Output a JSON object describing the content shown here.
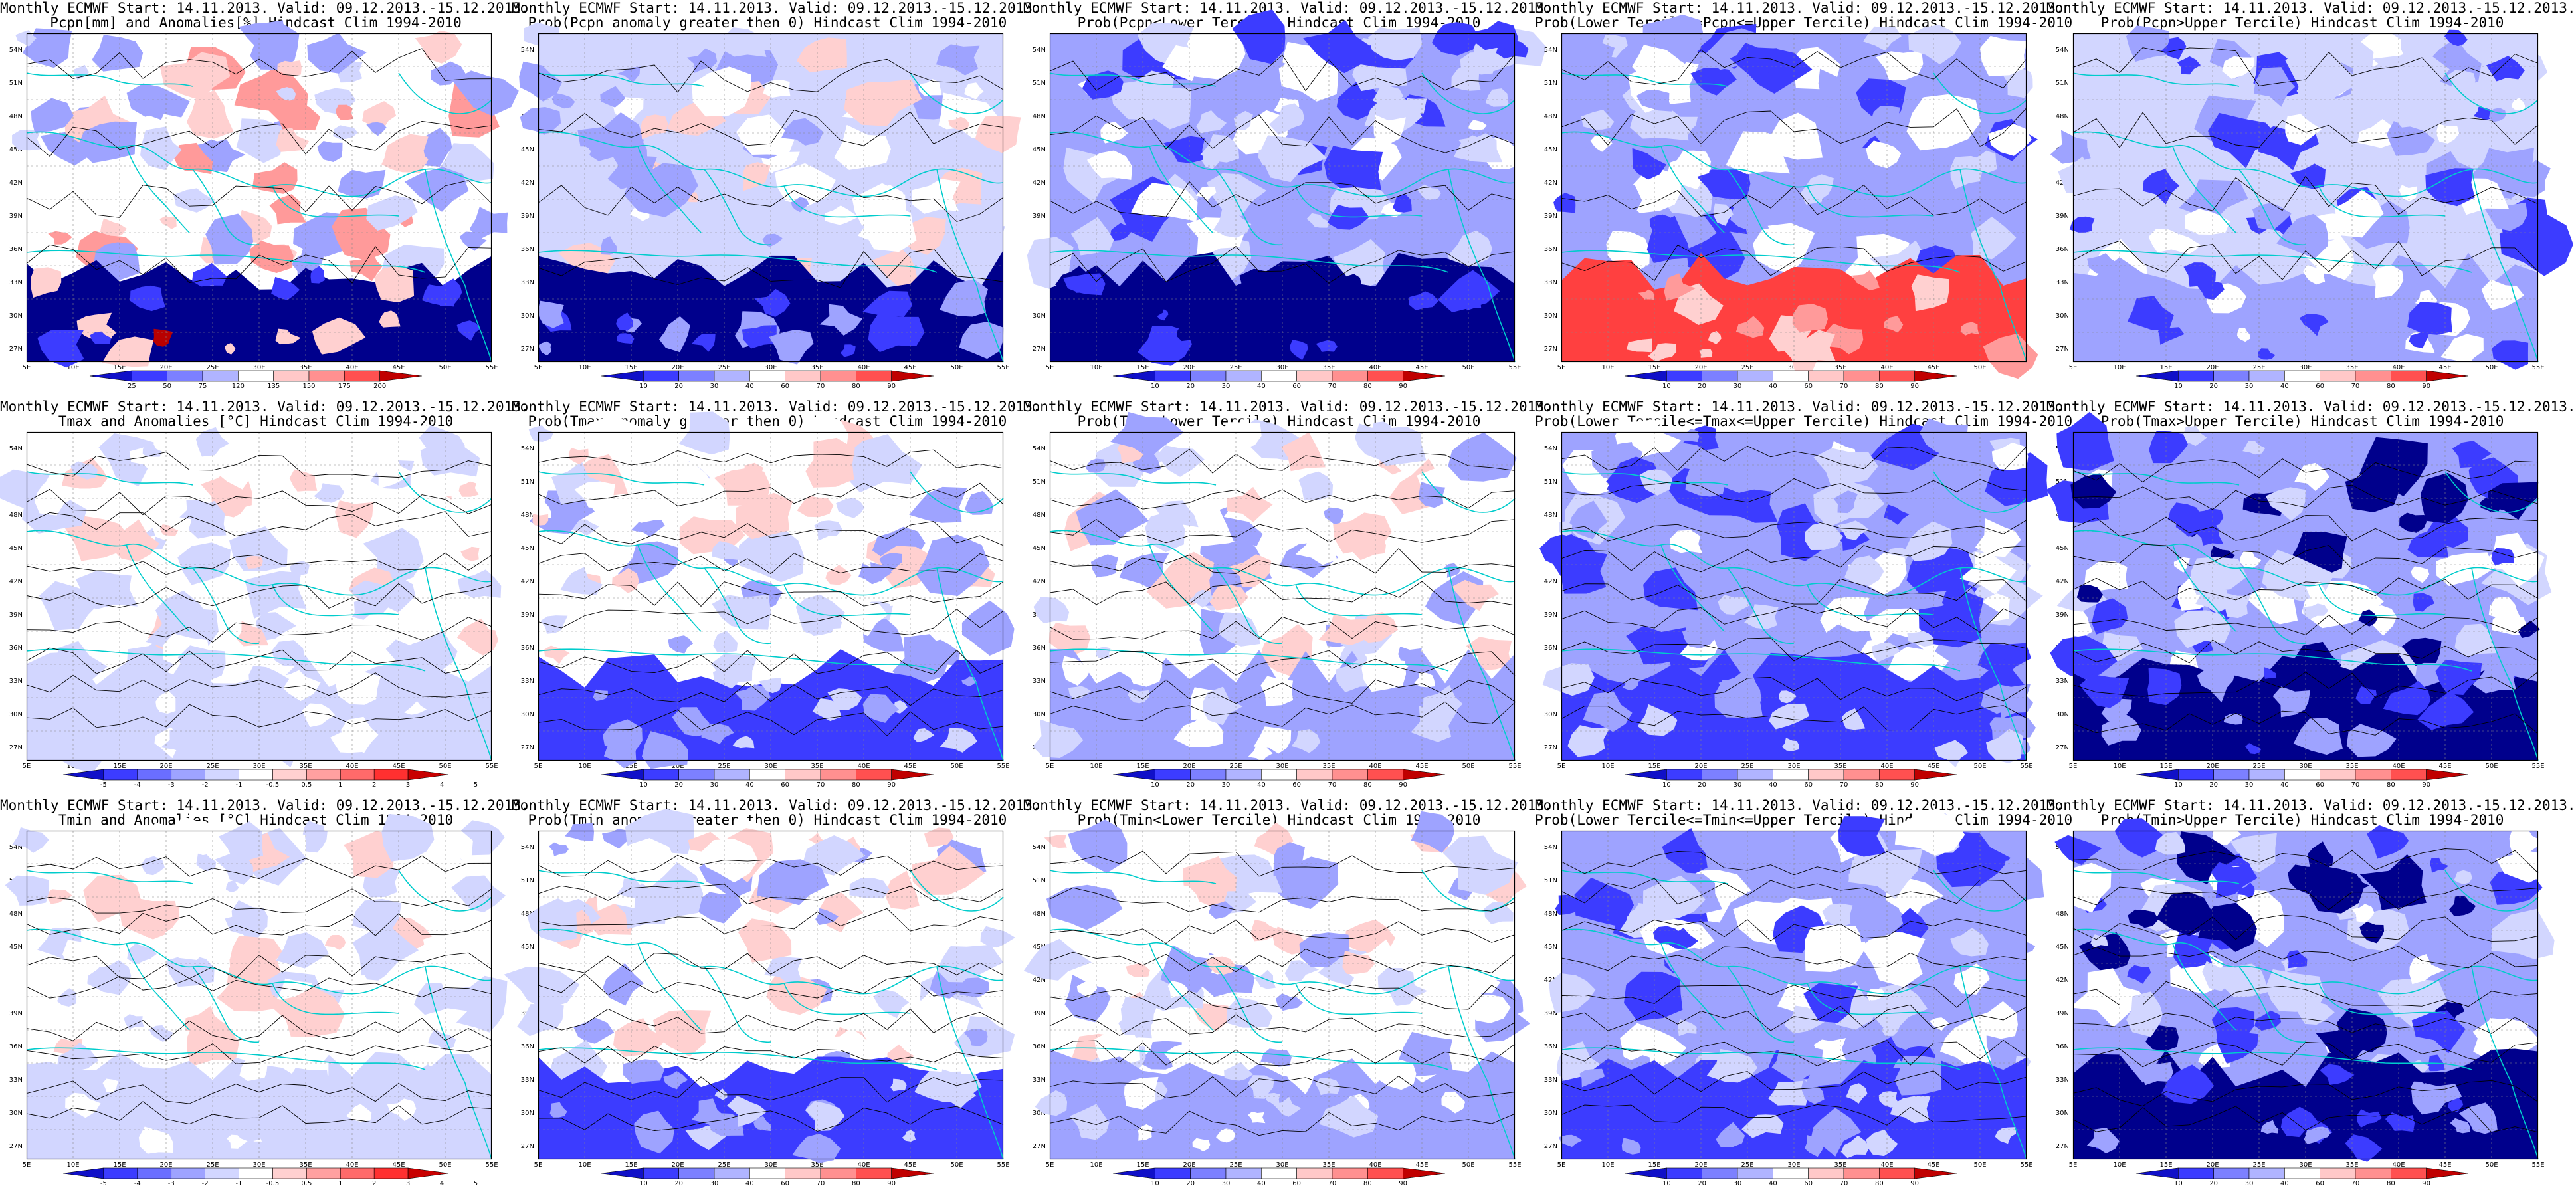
{
  "grid": {
    "lon_labels": [
      "5E",
      "10E",
      "15E",
      "20E",
      "25E",
      "30E",
      "35E",
      "40E",
      "45E",
      "50E",
      "55E"
    ],
    "lat_labels": [
      "54N",
      "51N",
      "48N",
      "45N",
      "42N",
      "39N",
      "36N",
      "33N",
      "30N",
      "27N"
    ]
  },
  "colors": {
    "blue_dark": "#00008c",
    "blue_mid": "#3c3cff",
    "blue_light": "#9ea3ff",
    "blue_pale": "#d2d6ff",
    "red_pale": "#ffd0d0",
    "red_light": "#ff9a9a",
    "red_mid": "#ff4040",
    "red_dark": "#b80000",
    "coast": "#00cccc",
    "contour": "#000000"
  },
  "colorbars": {
    "pcpn_anom": {
      "labels": [
        "25",
        "50",
        "75",
        "120",
        "135",
        "150",
        "175",
        "200"
      ]
    },
    "temp_anom": {
      "labels": [
        "-5",
        "-4",
        "-3",
        "-2",
        "-1",
        "-0.5",
        "0.5",
        "1",
        "2",
        "3",
        "4",
        "5"
      ]
    },
    "prob": {
      "labels": [
        "10",
        "20",
        "30",
        "40",
        "60",
        "70",
        "80",
        "90"
      ]
    }
  },
  "panels": [
    {
      "row": 0,
      "col": 0,
      "title1": "Monthly ECMWF Start: 14.11.2013. Valid: 09.12.2013.-15.12.2013.",
      "title2": "Pcpn[mm] and Anomalies[%] Hindcast Clim 1994-2010",
      "cbar": "pcpn_anom",
      "scheme": "pcpn_anom"
    },
    {
      "row": 0,
      "col": 1,
      "title1": "Monthly ECMWF Start: 14.11.2013. Valid: 09.12.2013.-15.12.2013.",
      "title2": "Prob(Pcpn anomaly greater then 0) Hindcast Clim 1994-2010",
      "cbar": "prob",
      "scheme": "prob_gt"
    },
    {
      "row": 0,
      "col": 2,
      "title1": "Monthly ECMWF Start: 14.11.2013. Valid: 09.12.2013.-15.12.2013.",
      "title2": "Prob(Pcpn<Lower Tercile) Hindcast Clim 1994-2010",
      "cbar": "prob",
      "scheme": "lower"
    },
    {
      "row": 0,
      "col": 3,
      "title1": "Monthly ECMWF Start: 14.11.2013. Valid: 09.12.2013.-15.12.2013.",
      "title2": "Prob(Lower Tercile<=Pcpn<=Upper Tercile) Hindcast Clim 1994-2010",
      "cbar": "prob",
      "scheme": "middle_red"
    },
    {
      "row": 0,
      "col": 4,
      "title1": "Monthly ECMWF Start: 14.11.2013. Valid: 09.12.2013.-15.12.2013.",
      "title2": "Prob(Pcpn>Upper Tercile) Hindcast Clim 1994-2010",
      "cbar": "prob",
      "scheme": "upper"
    },
    {
      "row": 1,
      "col": 0,
      "title1": "Monthly ECMWF Start: 14.11.2013. Valid: 09.12.2013.-15.12.2013.",
      "title2": "Tmax and Anomalies [°C] Hindcast Clim 1994-2010",
      "cbar": "temp_anom",
      "scheme": "temp"
    },
    {
      "row": 1,
      "col": 1,
      "title1": "Monthly ECMWF Start: 14.11.2013. Valid: 09.12.2013.-15.12.2013.",
      "title2": "Prob(Tmax anomaly greater then 0) Hindcast Clim 1994-2010",
      "cbar": "prob",
      "scheme": "temp_prob"
    },
    {
      "row": 1,
      "col": 2,
      "title1": "Monthly ECMWF Start: 14.11.2013. Valid: 09.12.2013.-15.12.2013.",
      "title2": "Prob(Tmax<Lower Tercile) Hindcast Clim 1994-2010",
      "cbar": "prob",
      "scheme": "temp_lower"
    },
    {
      "row": 1,
      "col": 3,
      "title1": "Monthly ECMWF Start: 14.11.2013. Valid: 09.12.2013.-15.12.2013.",
      "title2": "Prob(Lower Tercile<=Tmax<=Upper Tercile) Hindcast Clim 1994-2010",
      "cbar": "prob",
      "scheme": "temp_mid"
    },
    {
      "row": 1,
      "col": 4,
      "title1": "Monthly ECMWF Start: 14.11.2013. Valid: 09.12.2013.-15.12.2013.",
      "title2": "Prob(Tmax>Upper Tercile) Hindcast Clim 1994-2010",
      "cbar": "prob",
      "scheme": "temp_upper"
    },
    {
      "row": 2,
      "col": 0,
      "title1": "Monthly ECMWF Start: 14.11.2013. Valid: 09.12.2013.-15.12.2013.",
      "title2": "Tmin and Anomalies [°C] Hindcast Clim 1994-2010",
      "cbar": "temp_anom",
      "scheme": "temp"
    },
    {
      "row": 2,
      "col": 1,
      "title1": "Monthly ECMWF Start: 14.11.2013. Valid: 09.12.2013.-15.12.2013.",
      "title2": "Prob(Tmin anomaly greater then 0) Hindcast Clim 1994-2010",
      "cbar": "prob",
      "scheme": "temp_prob"
    },
    {
      "row": 2,
      "col": 2,
      "title1": "Monthly ECMWF Start: 14.11.2013. Valid: 09.12.2013.-15.12.2013.",
      "title2": "Prob(Tmin<Lower Tercile) Hindcast Clim 1994-2010",
      "cbar": "prob",
      "scheme": "temp_lower"
    },
    {
      "row": 2,
      "col": 3,
      "title1": "Monthly ECMWF Start: 14.11.2013. Valid: 09.12.2013.-15.12.2013.",
      "title2": "Prob(Lower Tercile<=Tmin<=Upper Tercile) Hindcast Clim 1994-2010",
      "cbar": "prob",
      "scheme": "temp_mid"
    },
    {
      "row": 2,
      "col": 4,
      "title1": "Monthly ECMWF Start: 14.11.2013. Valid: 09.12.2013.-15.12.2013.",
      "title2": "Prob(Tmin>Upper Tercile) Hindcast Clim 1994-2010",
      "cbar": "prob",
      "scheme": "temp_upper"
    }
  ]
}
